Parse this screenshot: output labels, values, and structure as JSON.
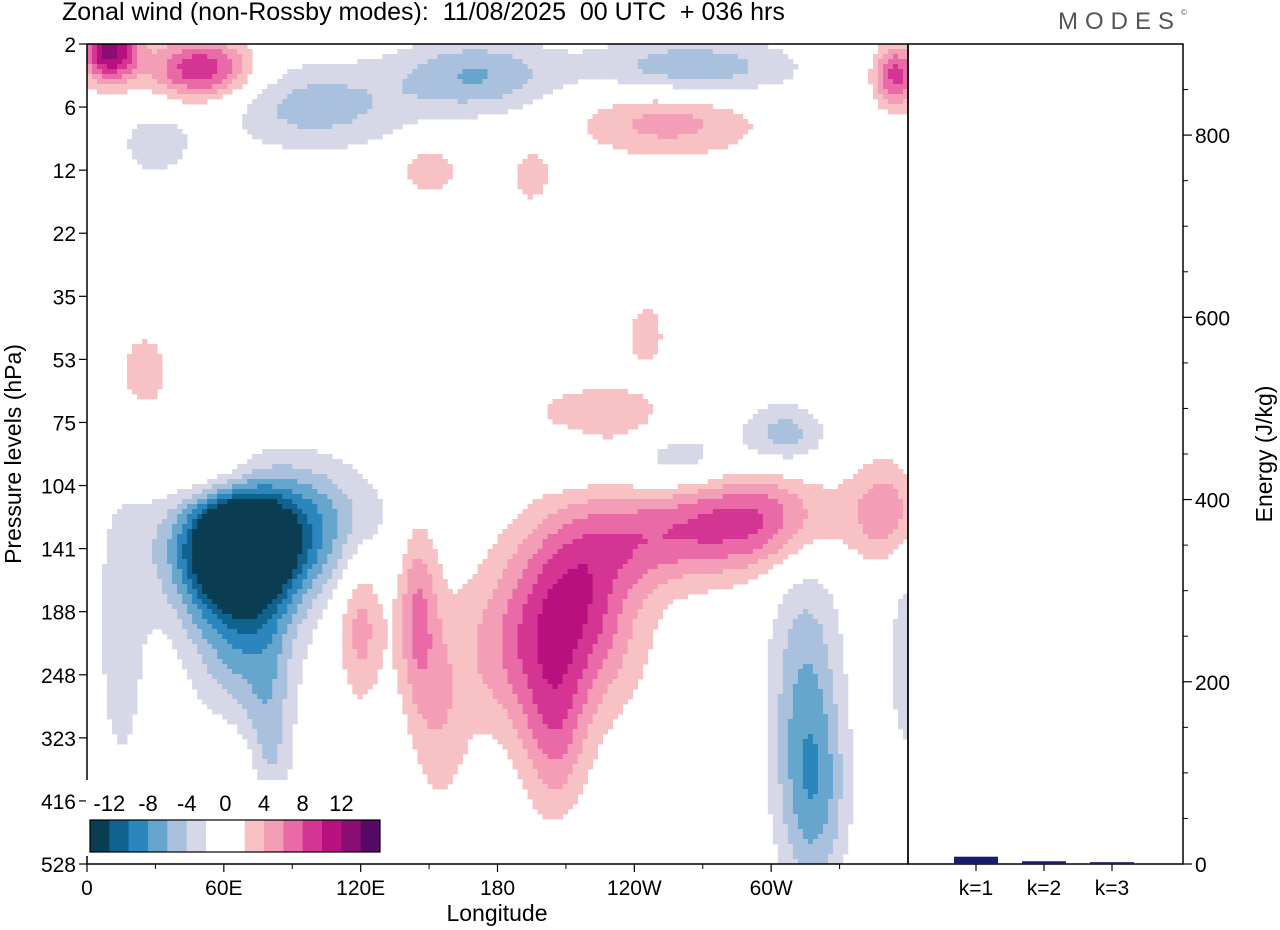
{
  "title": "Zonal wind (non-Rossby modes):  11/08/2025  00 UTC  + 036 hrs",
  "brand": "MODES",
  "brand_mark": "©",
  "colors": {
    "levels": [
      "#0b3d52",
      "#10628f",
      "#2b86bd",
      "#66a6cc",
      "#a9c1dd",
      "#d6d8e8",
      "#ffffff",
      "#ffffff",
      "#f8c2c5",
      "#f39eb6",
      "#ea6aa8",
      "#d43593",
      "#b8107f",
      "#8a0d73",
      "#570a65"
    ],
    "frame": "#000000",
    "bar": "#1a1a70"
  },
  "chart_data": [
    {
      "type": "heatmap",
      "title": "Zonal wind (non-Rossby modes)",
      "xlabel": "Longitude",
      "ylabel": "Pressure levels (hPa)",
      "x_ticks": [
        {
          "lon": 0,
          "label": "0"
        },
        {
          "lon": 60,
          "label": "60E"
        },
        {
          "lon": 120,
          "label": "120E"
        },
        {
          "lon": 180,
          "label": "180"
        },
        {
          "lon": 240,
          "label": "120W"
        },
        {
          "lon": 300,
          "label": "60W"
        }
      ],
      "x_range": [
        0,
        360
      ],
      "y_levels": [
        "2",
        "6",
        "12",
        "22",
        "35",
        "53",
        "75",
        "104",
        "141",
        "188",
        "248",
        "323",
        "416",
        "528"
      ],
      "colorbar": {
        "labels": [
          "-12",
          "-8",
          "-4",
          "0",
          "4",
          "8",
          "12"
        ],
        "label_index": [
          1,
          3,
          5,
          7,
          9,
          11,
          13
        ],
        "n_classes": 15
      },
      "blobs": [
        {
          "lon": 67,
          "lev": 8.0,
          "v": -14,
          "rx": 16,
          "ry": 0.6
        },
        {
          "lon": 65,
          "lev": 8.2,
          "v": -10,
          "rx": 30,
          "ry": 1.1
        },
        {
          "lon": 85,
          "lev": 7.6,
          "v": -8,
          "rx": 40,
          "ry": 1.0
        },
        {
          "lon": 68,
          "lev": 9.5,
          "v": -6,
          "rx": 22,
          "ry": 1.8
        },
        {
          "lon": 80,
          "lev": 11.5,
          "v": -4,
          "rx": 10,
          "ry": 2.0
        },
        {
          "lon": 15,
          "lev": 9.5,
          "v": -3,
          "rx": 12,
          "ry": 2.5
        },
        {
          "lon": 55,
          "lev": 6.8,
          "v": 4,
          "rx": 24,
          "ry": 0.5
        },
        {
          "lon": 65,
          "lev": 11.8,
          "v": 3,
          "rx": 18,
          "ry": 1.4
        },
        {
          "lon": 25,
          "lev": 5.2,
          "v": 3,
          "rx": 14,
          "ry": 0.8
        },
        {
          "lon": 120,
          "lev": 9.2,
          "v": 5,
          "rx": 10,
          "ry": 1.2
        },
        {
          "lon": 145,
          "lev": 9.0,
          "v": 6,
          "rx": 9,
          "ry": 1.5
        },
        {
          "lon": 155,
          "lev": 10.8,
          "v": 3,
          "rx": 12,
          "ry": 1.5
        },
        {
          "lon": 200,
          "lev": 9.6,
          "v": 7,
          "rx": 36,
          "ry": 1.4
        },
        {
          "lon": 215,
          "lev": 8.6,
          "v": 6,
          "rx": 26,
          "ry": 1.2
        },
        {
          "lon": 250,
          "lev": 7.8,
          "v": 6,
          "rx": 40,
          "ry": 0.8
        },
        {
          "lon": 295,
          "lev": 7.5,
          "v": 7,
          "rx": 35,
          "ry": 0.8
        },
        {
          "lon": 350,
          "lev": 7.4,
          "v": 5,
          "rx": 15,
          "ry": 0.8
        },
        {
          "lon": 205,
          "lev": 11.0,
          "v": 5,
          "rx": 14,
          "ry": 1.3
        },
        {
          "lon": 225,
          "lev": 5.9,
          "v": 4,
          "rx": 30,
          "ry": 0.5
        },
        {
          "lon": 245,
          "lev": 4.6,
          "v": 3,
          "rx": 10,
          "ry": 0.6
        },
        {
          "lon": 210,
          "lev": 6.5,
          "v": -3,
          "rx": 14,
          "ry": 0.4
        },
        {
          "lon": 260,
          "lev": 6.6,
          "v": -4,
          "rx": 25,
          "ry": 0.5
        },
        {
          "lon": 305,
          "lev": 6.2,
          "v": -5,
          "rx": 18,
          "ry": 0.5
        },
        {
          "lon": 315,
          "lev": 10.5,
          "v": -6,
          "rx": 16,
          "ry": 2.5
        },
        {
          "lon": 320,
          "lev": 12.0,
          "v": -4,
          "rx": 14,
          "ry": 1.5
        },
        {
          "lon": 360,
          "lev": 9.8,
          "v": -4,
          "rx": 8,
          "ry": 1.5
        },
        {
          "lon": 10,
          "lev": 0.1,
          "v": 13,
          "rx": 12,
          "ry": 0.5
        },
        {
          "lon": 50,
          "lev": 0.4,
          "v": 10,
          "rx": 22,
          "ry": 0.5
        },
        {
          "lon": 100,
          "lev": 1.0,
          "v": -5,
          "rx": 40,
          "ry": 0.7
        },
        {
          "lon": 170,
          "lev": 0.5,
          "v": -6,
          "rx": 35,
          "ry": 0.6
        },
        {
          "lon": 265,
          "lev": 0.4,
          "v": -6,
          "rx": 45,
          "ry": 0.5
        },
        {
          "lon": 255,
          "lev": 1.2,
          "v": 5,
          "rx": 40,
          "ry": 0.6
        },
        {
          "lon": 355,
          "lev": 0.5,
          "v": 9,
          "rx": 10,
          "ry": 0.5
        },
        {
          "lon": 30,
          "lev": 1.6,
          "v": -3,
          "rx": 18,
          "ry": 0.6
        },
        {
          "lon": 150,
          "lev": 2.0,
          "v": 4,
          "rx": 12,
          "ry": 0.4
        },
        {
          "lon": 195,
          "lev": 2.1,
          "v": 3,
          "rx": 10,
          "ry": 0.5
        }
      ]
    },
    {
      "type": "bar",
      "ylabel": "Energy (J/kg)",
      "categories": [
        "k=1",
        "k=2",
        "k=3"
      ],
      "values": [
        8,
        3,
        2
      ],
      "ylim": [
        0,
        900
      ],
      "y_ticks": [
        "0",
        "200",
        "400",
        "600",
        "800"
      ],
      "y_tick_values": [
        0,
        200,
        400,
        600,
        800
      ]
    }
  ]
}
